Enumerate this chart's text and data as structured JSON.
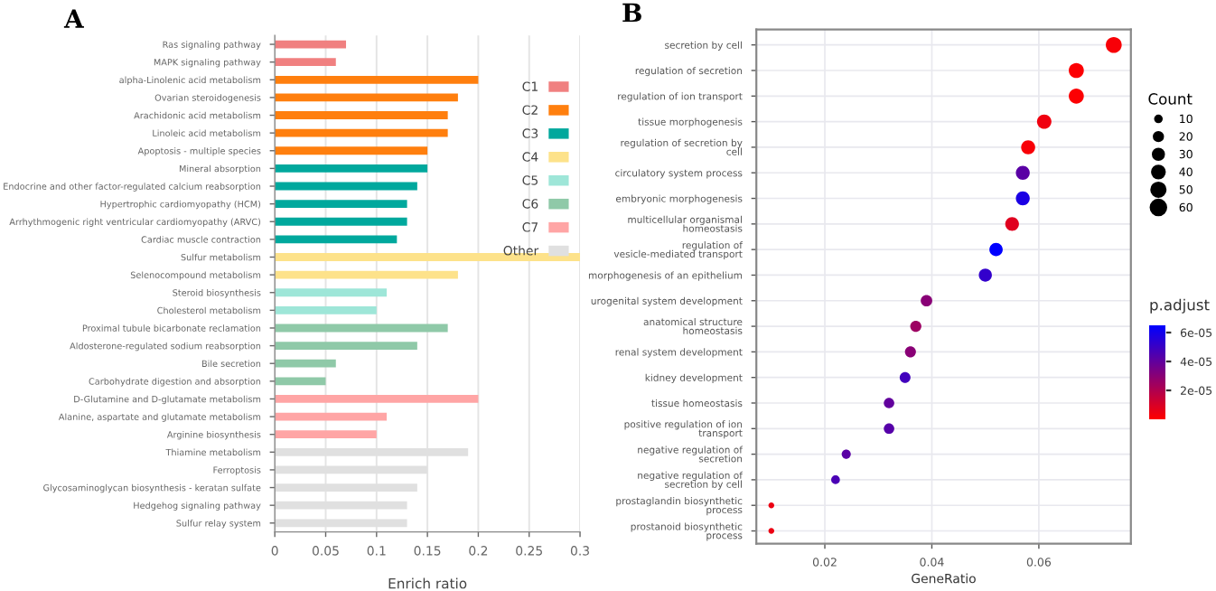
{
  "chart_data": [
    {
      "type": "bar",
      "orientation": "horizontal",
      "title": "A",
      "xlabel": "Enrich ratio",
      "categories": [
        "Ras signaling pathway",
        "MAPK signaling pathway",
        "alpha-Linolenic acid metabolism",
        "Ovarian steroidogenesis",
        "Arachidonic acid metabolism",
        "Linoleic acid metabolism",
        "Apoptosis - multiple species",
        "Mineral absorption",
        "Endocrine and other factor-regulated calcium reabsorption",
        "Hypertrophic cardiomyopathy (HCM)",
        "Arrhythmogenic right ventricular cardiomyopathy (ARVC)",
        "Cardiac muscle contraction",
        "Sulfur metabolism",
        "Selenocompound metabolism",
        "Steroid biosynthesis",
        "Cholesterol metabolism",
        "Proximal tubule bicarbonate reclamation",
        "Aldosterone-regulated sodium reabsorption",
        "Bile secretion",
        "Carbohydrate digestion and absorption",
        "D-Glutamine and D-glutamate metabolism",
        "Alanine, aspartate and glutamate metabolism",
        "Arginine biosynthesis",
        "Thiamine metabolism",
        "Ferroptosis",
        "Glycosaminoglycan biosynthesis - keratan sulfate",
        "Hedgehog signaling pathway",
        "Sulfur relay system"
      ],
      "series": [
        {
          "name": "C1",
          "color": "#f08080",
          "values": [
            0.07,
            0.06,
            null,
            null,
            null,
            null,
            null,
            null,
            null,
            null,
            null,
            null,
            null,
            null,
            null,
            null,
            null,
            null,
            null,
            null,
            null,
            null,
            null,
            null,
            null,
            null,
            null,
            null
          ]
        },
        {
          "name": "C2",
          "color": "#ff7f0e",
          "values": [
            null,
            null,
            0.2,
            0.18,
            0.17,
            0.17,
            0.15,
            null,
            null,
            null,
            null,
            null,
            null,
            null,
            null,
            null,
            null,
            null,
            null,
            null,
            null,
            null,
            null,
            null,
            null,
            null,
            null,
            null
          ]
        },
        {
          "name": "C3",
          "color": "#00a89d",
          "values": [
            null,
            null,
            null,
            null,
            null,
            null,
            null,
            0.15,
            0.14,
            0.13,
            0.13,
            0.12,
            null,
            null,
            null,
            null,
            null,
            null,
            null,
            null,
            null,
            null,
            null,
            null,
            null,
            null,
            null,
            null
          ]
        },
        {
          "name": "C4",
          "color": "#fde28a",
          "values": [
            null,
            null,
            null,
            null,
            null,
            null,
            null,
            null,
            null,
            null,
            null,
            null,
            0.3,
            0.18,
            null,
            null,
            null,
            null,
            null,
            null,
            null,
            null,
            null,
            null,
            null,
            null,
            null,
            null
          ]
        },
        {
          "name": "C5",
          "color": "#9ee6d8",
          "values": [
            null,
            null,
            null,
            null,
            null,
            null,
            null,
            null,
            null,
            null,
            null,
            null,
            null,
            null,
            0.11,
            0.1,
            null,
            null,
            null,
            null,
            null,
            null,
            null,
            null,
            null,
            null,
            null,
            null
          ]
        },
        {
          "name": "C6",
          "color": "#8fc9a8",
          "values": [
            null,
            null,
            null,
            null,
            null,
            null,
            null,
            null,
            null,
            null,
            null,
            null,
            null,
            null,
            null,
            null,
            0.17,
            0.14,
            0.06,
            0.05,
            null,
            null,
            null,
            null,
            null,
            null,
            null,
            null
          ]
        },
        {
          "name": "C7",
          "color": "#ffa5a5",
          "values": [
            null,
            null,
            null,
            null,
            null,
            null,
            null,
            null,
            null,
            null,
            null,
            null,
            null,
            null,
            null,
            null,
            null,
            null,
            null,
            null,
            0.2,
            0.11,
            0.1,
            null,
            null,
            null,
            null,
            null
          ]
        },
        {
          "name": "Other",
          "color": "#e0e0e0",
          "values": [
            null,
            null,
            null,
            null,
            null,
            null,
            null,
            null,
            null,
            null,
            null,
            null,
            null,
            null,
            null,
            null,
            null,
            null,
            null,
            null,
            null,
            null,
            null,
            0.19,
            0.15,
            0.14,
            0.13,
            0.13
          ]
        }
      ],
      "xlim": [
        0,
        0.3
      ],
      "xticks": [
        0,
        0.05,
        0.1,
        0.15,
        0.2,
        0.25,
        0.3
      ],
      "grid": "x",
      "legend": "top right"
    },
    {
      "type": "bubble",
      "orientation": "horizontal",
      "title": "B",
      "xlabel": "GeneRatio",
      "categories": [
        "secretion by cell",
        "regulation of secretion",
        "regulation of ion transport",
        "tissue morphogenesis",
        "regulation of secretion by\ncell",
        "circulatory system process",
        "embryonic morphogenesis",
        "multicellular organismal\nhomeostasis",
        "regulation of\nvesicle-mediated transport",
        "morphogenesis of an epithelium",
        "urogenital system development",
        "anatomical structure\nhomeostasis",
        "renal system development",
        "kidney development",
        "tissue homeostasis",
        "positive regulation of ion\ntransport",
        "negative regulation of\nsecretion",
        "negative regulation of\nsecretion by cell",
        "prostaglandin biosynthetic\nprocess",
        "prostanoid biosynthetic\nprocess"
      ],
      "values": [
        0.074,
        0.067,
        0.067,
        0.061,
        0.058,
        0.057,
        0.057,
        0.055,
        0.052,
        0.05,
        0.039,
        0.037,
        0.036,
        0.035,
        0.032,
        0.032,
        0.024,
        0.022,
        0.01,
        0.01
      ],
      "sizes": [
        67,
        60,
        60,
        55,
        52,
        51,
        51,
        50,
        47,
        45,
        35,
        33,
        32,
        31,
        29,
        29,
        22,
        20,
        9,
        9
      ],
      "size_legend": [
        10,
        20,
        30,
        40,
        50,
        60
      ],
      "legend_title": "Count",
      "cvalues": [
        2e-06,
        1e-06,
        1e-06,
        4e-06,
        2e-06,
        4.2e-05,
        5.8e-05,
        8e-06,
        6.5e-05,
        5.2e-05,
        3e-05,
        2.5e-05,
        3e-05,
        4.8e-05,
        4e-05,
        4.3e-05,
        4.2e-05,
        4.6e-05,
        5e-06,
        5e-06
      ],
      "clim": [
        0,
        6.5e-05
      ],
      "cticks": [
        {
          "value": 2e-05,
          "label": "2e-05"
        },
        {
          "value": 4e-05,
          "label": "4e-05"
        },
        {
          "value": 6e-05,
          "label": "6e-05"
        }
      ],
      "clabel": "p.adjust",
      "xlim": [
        0.0072,
        0.0772
      ],
      "xticks": [
        0.02,
        0.04,
        0.06
      ],
      "grid": true
    }
  ]
}
